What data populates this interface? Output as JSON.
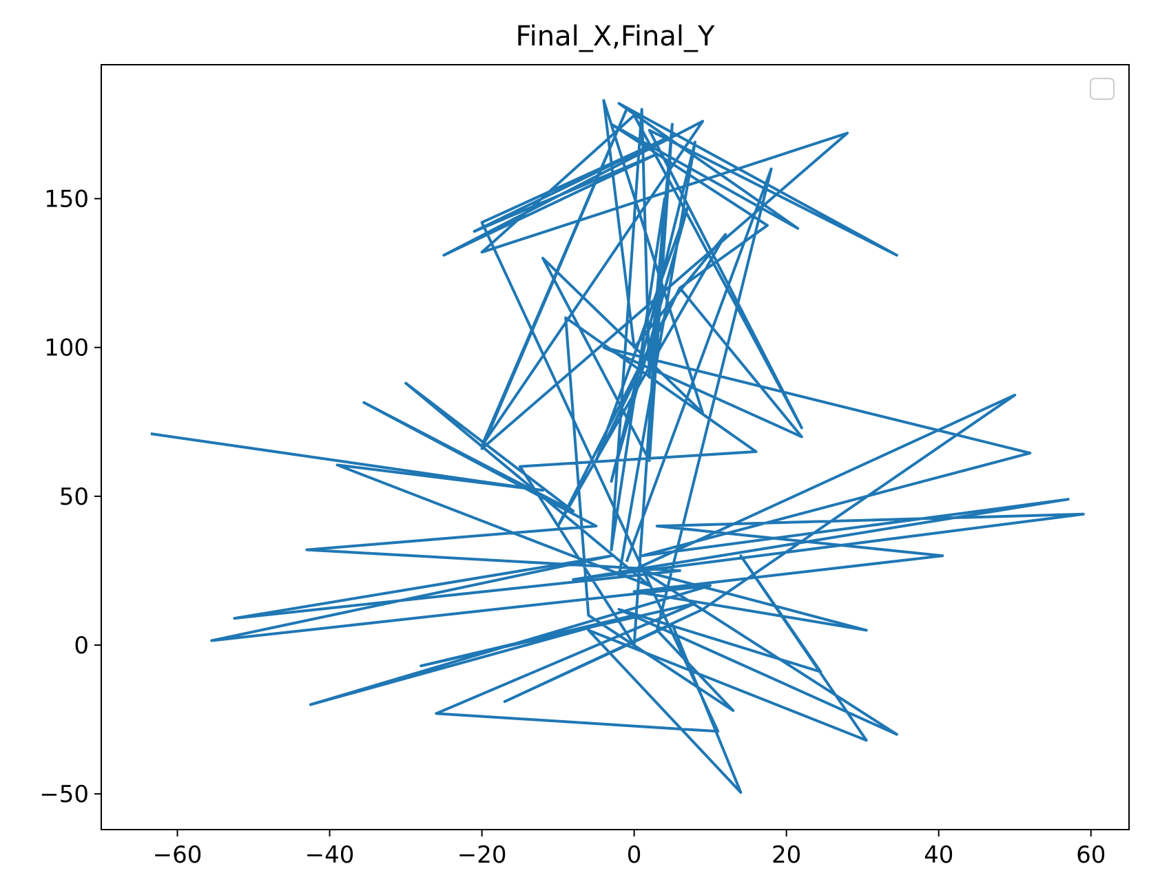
{
  "chart_data": {
    "type": "line",
    "title": "Final_X,Final_Y",
    "xlabel": "",
    "ylabel": "",
    "xlim": [
      -70,
      65
    ],
    "ylim": [
      -62,
      195
    ],
    "x_ticks": [
      -60,
      -40,
      -20,
      0,
      20,
      40,
      60
    ],
    "y_ticks": [
      -50,
      0,
      50,
      100,
      150
    ],
    "x_tick_labels": [
      "−60",
      "−40",
      "−20",
      "0",
      "20",
      "40",
      "60"
    ],
    "y_tick_labels": [
      "−50",
      "0",
      "50",
      "100",
      "150"
    ],
    "grid": false,
    "legend": {
      "placement": "upper right",
      "entries": []
    },
    "series": [
      {
        "color": "#1f77b4",
        "x": [
          -63.5,
          -12,
          -39,
          2,
          -30,
          -8,
          -35.5,
          -5,
          -43,
          6,
          -52.5,
          -3,
          -55.5,
          10,
          -42.5,
          0,
          -28,
          8,
          -26,
          11,
          -20,
          4,
          -21,
          3,
          -25,
          9,
          -20,
          -1,
          -20,
          28,
          -20,
          0,
          22,
          2,
          34.5,
          -2,
          21.5,
          -3,
          17.5,
          6,
          22,
          -4,
          52,
          1,
          57,
          -8,
          59,
          3,
          40.5,
          0,
          30.5,
          1,
          34.5,
          -2,
          24.5,
          14,
          30.5,
          -6,
          14,
          5,
          -17,
          9,
          50,
          -2,
          8,
          -3,
          7,
          -5,
          6,
          -10,
          12,
          0,
          -4,
          9,
          -12,
          2,
          5,
          2,
          1,
          -3,
          4,
          0,
          -15,
          16,
          -9,
          -6,
          13,
          3,
          18,
          -1
        ],
        "y": [
          71,
          52,
          60.5,
          20,
          88,
          45,
          81.5,
          40,
          32,
          25,
          9,
          30,
          1.5,
          20,
          -20,
          10,
          -7,
          14,
          -23,
          -29,
          142,
          170,
          139,
          165,
          131,
          176,
          67,
          180,
          66,
          172,
          132,
          178,
          73,
          173,
          131,
          182,
          140,
          175,
          141,
          120,
          70,
          100,
          64.5,
          30,
          49,
          22,
          44,
          40,
          30,
          18,
          5,
          25,
          -30,
          12,
          -9,
          30,
          -32,
          5,
          -49.5,
          7,
          -19,
          12,
          84,
          23,
          169,
          55,
          147,
          62,
          120,
          40,
          138,
          100,
          183,
          78,
          130,
          62,
          175,
          90,
          180,
          32,
          150,
          0,
          60,
          65,
          110,
          10,
          -22,
          5,
          160,
          28
        ]
      }
    ]
  }
}
